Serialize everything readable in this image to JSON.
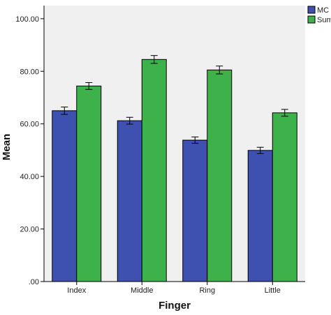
{
  "chart_data": {
    "type": "bar",
    "xlabel": "Finger",
    "ylabel": "Mean",
    "categories": [
      "Index",
      "Middle",
      "Ring",
      "Little"
    ],
    "ylim": [
      0,
      105
    ],
    "yticks": [
      0,
      20,
      40,
      60,
      80,
      100
    ],
    "ytick_labels": [
      ".00",
      "20.00",
      "40.00",
      "60.00",
      "80.00",
      "100.00"
    ],
    "error_bars": true,
    "legend_position": "top-right",
    "grid": false,
    "series": [
      {
        "name": "MC",
        "color": "#3f51b0",
        "values": [
          65.0,
          61.2,
          53.8,
          49.9
        ],
        "errors": [
          1.4,
          1.3,
          1.2,
          1.2
        ]
      },
      {
        "name": "Sum",
        "color": "#3db24a",
        "values": [
          74.4,
          84.5,
          80.5,
          64.2
        ],
        "errors": [
          1.3,
          1.5,
          1.5,
          1.3
        ]
      }
    ]
  },
  "colors": {
    "plot_background": "#f0f0f0",
    "frame": "#000000"
  }
}
